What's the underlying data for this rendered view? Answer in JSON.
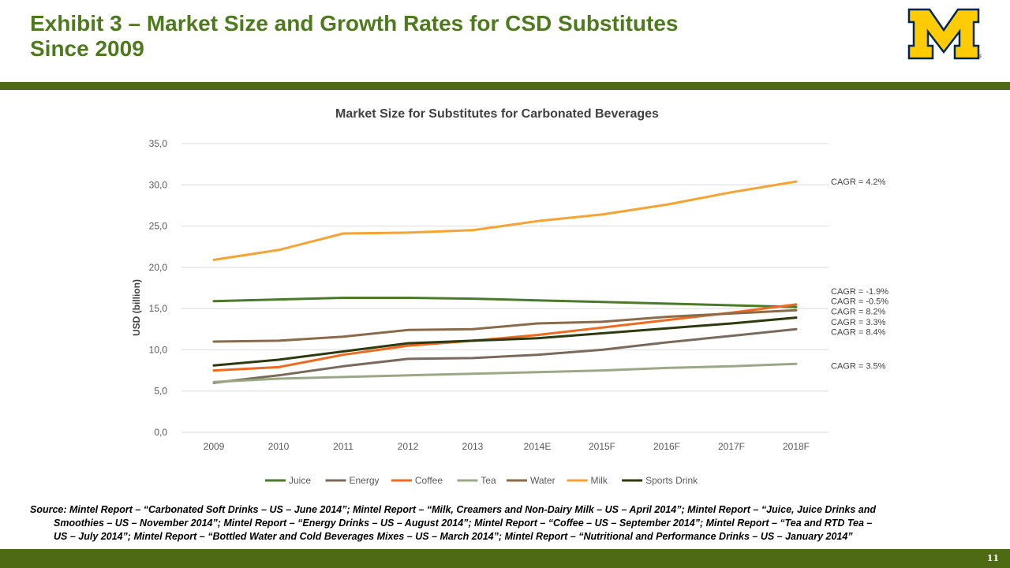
{
  "title": {
    "line1": "Exhibit 3 – Market Size and Growth Rates for CSD Substitutes",
    "line2": "Since 2009"
  },
  "logo": {
    "icon": "university-block-m-logo",
    "colors": {
      "fill": "#ffcb05",
      "stroke": "#00274c"
    }
  },
  "colors": {
    "title": "#4e7a1e",
    "bar": "#4e6a12"
  },
  "footer": {
    "page_number": "11"
  },
  "source": {
    "line1": "Source: Mintel Report – “Carbonated Soft Drinks – US – June 2014”; Mintel Report – “Milk, Creamers and Non-Dairy Milk – US – April 2014”; Mintel Report – “Juice, Juice Drinks and",
    "line2": "Smoothies – US – November 2014”; Mintel Report – “Energy Drinks – US – August 2014”; Mintel Report – “Coffee – US – September 2014”; Mintel Report – “Tea and RTD Tea –",
    "line3": "US – July 2014”; Mintel Report – “Bottled Water and Cold Beverages Mixes – US – March 2014”; Mintel Report – “Nutritional and Performance Drinks – US – January 2014”"
  },
  "chart_data": {
    "type": "line",
    "title": "Market Size for Substitutes for Carbonated Beverages",
    "xlabel": "",
    "ylabel": "USD (billion)",
    "categories": [
      "2009",
      "2010",
      "2011",
      "2012",
      "2013",
      "2014E",
      "2015F",
      "2016F",
      "2017F",
      "2018F"
    ],
    "ylim": [
      0,
      35
    ],
    "yticks": [
      "0,0",
      "5,0",
      "10,0",
      "15,0",
      "20,0",
      "25,0",
      "30,0",
      "35,0"
    ],
    "grid": true,
    "legend_position": "bottom",
    "series": [
      {
        "name": "Juice",
        "color": "#4a7a2a",
        "values": [
          15.9,
          16.1,
          16.3,
          16.3,
          16.2,
          16.0,
          15.8,
          15.6,
          15.4,
          15.2
        ]
      },
      {
        "name": "Energy",
        "color": "#7b6a5c",
        "values": [
          6.0,
          6.9,
          8.0,
          8.9,
          9.0,
          9.4,
          10.0,
          10.9,
          11.7,
          12.5
        ]
      },
      {
        "name": "Coffee",
        "color": "#ef6a1e",
        "values": [
          7.5,
          7.9,
          9.4,
          10.5,
          11.1,
          11.8,
          12.7,
          13.6,
          14.5,
          15.5
        ]
      },
      {
        "name": "Tea",
        "color": "#9aa886",
        "values": [
          6.1,
          6.5,
          6.7,
          6.9,
          7.1,
          7.3,
          7.5,
          7.8,
          8.0,
          8.3
        ]
      },
      {
        "name": "Water",
        "color": "#8b6a4a",
        "values": [
          11.0,
          11.1,
          11.6,
          12.4,
          12.5,
          13.2,
          13.4,
          14.0,
          14.4,
          14.8
        ]
      },
      {
        "name": "Milk",
        "color": "#f5a332",
        "values": [
          20.9,
          22.1,
          24.1,
          24.2,
          24.5,
          25.6,
          26.4,
          27.6,
          29.1,
          30.4
        ]
      },
      {
        "name": "Sports Drink",
        "color": "#2c3a0e",
        "values": [
          8.1,
          8.8,
          9.8,
          10.8,
          11.1,
          11.4,
          12.0,
          12.6,
          13.2,
          13.9
        ]
      }
    ],
    "annotations": [
      {
        "text": "CAGR = 4.2%",
        "value": 30.4
      },
      {
        "text": "CAGR = -1.9%",
        "value": 17.1
      },
      {
        "text": "CAGR = -0.5%",
        "value": 15.9
      },
      {
        "text": "CAGR = 8.2%",
        "value": 14.7
      },
      {
        "text": "CAGR = 3.3%",
        "value": 13.4
      },
      {
        "text": "CAGR = 8.4%",
        "value": 12.2
      },
      {
        "text": "CAGR = 3.5%",
        "value": 8.1
      }
    ]
  }
}
